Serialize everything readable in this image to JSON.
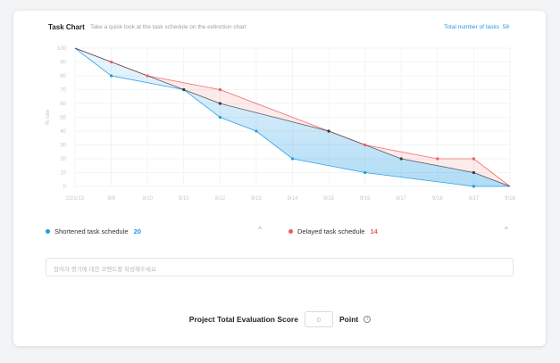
{
  "header": {
    "title": "Task Chart",
    "subtitle": "Take a quick look at the task schedule on the extinction chart",
    "total_label": "Total number of tasks",
    "total_value": "58"
  },
  "legend": {
    "shortened_label": "Shortened task schedule",
    "shortened_count": "20",
    "delayed_label": "Delayed task schedule",
    "delayed_count": "14",
    "chevron_glyph": "^"
  },
  "comment": {
    "placeholder": "참여자 평가에 대한 코멘트를 작성해주세요"
  },
  "score": {
    "label": "Project Total Evaluation Score",
    "value": "0",
    "unit": "Point",
    "info_glyph": "i"
  },
  "colors": {
    "blue": "#1e9be3",
    "red": "#ef5b5b",
    "planned": "#3a3a3a"
  },
  "chart_data": {
    "type": "line",
    "ylabel": "% rate",
    "ylim": [
      0,
      100
    ],
    "yticks": [
      0,
      10,
      20,
      30,
      40,
      50,
      60,
      70,
      80,
      90,
      100
    ],
    "x": [
      "22/1/13",
      "9/9",
      "9/10",
      "9/10",
      "9/12",
      "9/13",
      "9/14",
      "9/15",
      "9/16",
      "9/17",
      "9/16",
      "9/17",
      "9/18"
    ],
    "grid": true,
    "series": [
      {
        "name": "Shortened task schedule",
        "color": "#1e9be3",
        "points": [
          [
            0,
            100
          ],
          [
            1,
            80
          ],
          [
            3,
            70
          ],
          [
            4,
            50
          ],
          [
            5,
            40
          ],
          [
            6,
            20
          ],
          [
            8,
            10
          ],
          [
            11,
            0
          ],
          [
            12,
            0
          ]
        ]
      },
      {
        "name": "Delayed task schedule",
        "color": "#ef5b5b",
        "points": [
          [
            0,
            100
          ],
          [
            1,
            90
          ],
          [
            2,
            80
          ],
          [
            4,
            70
          ],
          [
            7,
            40
          ],
          [
            8,
            30
          ],
          [
            10,
            20
          ],
          [
            11,
            20
          ],
          [
            12,
            0
          ]
        ]
      },
      {
        "name": "",
        "color": "#3a3a3a",
        "points": [
          [
            0,
            100
          ],
          [
            3,
            70
          ],
          [
            4,
            60
          ],
          [
            7,
            40
          ],
          [
            9,
            20
          ],
          [
            11,
            10
          ],
          [
            12,
            0
          ]
        ]
      }
    ]
  }
}
